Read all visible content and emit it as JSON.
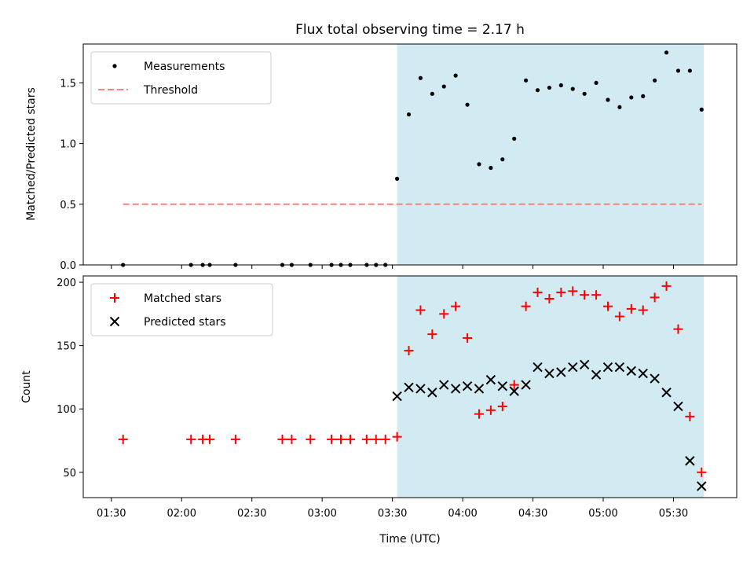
{
  "chart_data": {
    "title": "Flux total observing time = 2.17 h",
    "xlabel": "Time (UTC)",
    "x_ticks": [
      "01:30",
      "02:00",
      "02:30",
      "03:00",
      "03:30",
      "04:00",
      "04:30",
      "05:00",
      "05:30"
    ],
    "x_range": [
      "01:18",
      "05:57"
    ],
    "shaded_region": {
      "start": "03:32",
      "end": "05:43",
      "color": "#add8e6"
    },
    "panels": [
      {
        "type": "scatter",
        "ylabel": "Matched/Predicted stars",
        "ylim": [
          0,
          1.82
        ],
        "y_ticks": [
          "0.0",
          "0.5",
          "1.0",
          "1.5"
        ],
        "grid": false,
        "legend_position": "upper-left",
        "series": [
          {
            "name": "Measurements",
            "marker": "dot",
            "color": "#000000",
            "x": [
              "01:35",
              "02:04",
              "02:09",
              "02:12",
              "02:23",
              "02:43",
              "02:47",
              "02:55",
              "03:04",
              "03:08",
              "03:12",
              "03:19",
              "03:23",
              "03:27",
              "03:32",
              "03:37",
              "03:42",
              "03:47",
              "03:52",
              "03:57",
              "04:02",
              "04:07",
              "04:12",
              "04:17",
              "04:22",
              "04:27",
              "04:32",
              "04:37",
              "04:42",
              "04:47",
              "04:52",
              "04:57",
              "05:02",
              "05:07",
              "05:12",
              "05:17",
              "05:22",
              "05:27",
              "05:32",
              "05:37",
              "05:42"
            ],
            "y": [
              0,
              0,
              0,
              0,
              0,
              0,
              0,
              0,
              0,
              0,
              0,
              0,
              0,
              0,
              0.71,
              1.24,
              1.54,
              1.41,
              1.47,
              1.56,
              1.32,
              0.83,
              0.8,
              0.87,
              1.04,
              1.52,
              1.44,
              1.46,
              1.48,
              1.45,
              1.41,
              1.5,
              1.36,
              1.3,
              1.38,
              1.39,
              1.52,
              1.75,
              1.6,
              1.6,
              1.28
            ]
          },
          {
            "name": "Threshold",
            "marker": "dashed-line",
            "color": "#ff7f7f",
            "x": [
              "01:35",
              "05:42"
            ],
            "y": [
              0.5,
              0.5
            ]
          }
        ]
      },
      {
        "type": "scatter",
        "ylabel": "Count",
        "ylim": [
          30,
          205
        ],
        "y_ticks": [
          "50",
          "100",
          "150",
          "200"
        ],
        "grid": false,
        "legend_position": "upper-left",
        "series": [
          {
            "name": "Matched stars",
            "marker": "plus",
            "color": "#ff0000",
            "x": [
              "01:35",
              "02:04",
              "02:09",
              "02:12",
              "02:23",
              "02:43",
              "02:47",
              "02:55",
              "03:04",
              "03:08",
              "03:12",
              "03:19",
              "03:23",
              "03:27",
              "03:32",
              "03:37",
              "03:42",
              "03:47",
              "03:52",
              "03:57",
              "04:02",
              "04:07",
              "04:12",
              "04:17",
              "04:22",
              "04:27",
              "04:32",
              "04:37",
              "04:42",
              "04:47",
              "04:52",
              "04:57",
              "05:02",
              "05:07",
              "05:12",
              "05:17",
              "05:22",
              "05:27",
              "05:32",
              "05:37",
              "05:42"
            ],
            "y": [
              76,
              76,
              76,
              76,
              76,
              76,
              76,
              76,
              76,
              76,
              76,
              76,
              76,
              76,
              78,
              146,
              178,
              159,
              175,
              181,
              156,
              96,
              99,
              102,
              119,
              181,
              192,
              187,
              192,
              193,
              190,
              190,
              181,
              173,
              179,
              178,
              188,
              197,
              163,
              94,
              50
            ]
          },
          {
            "name": "Predicted stars",
            "marker": "x",
            "color": "#000000",
            "x": [
              "03:32",
              "03:37",
              "03:42",
              "03:47",
              "03:52",
              "03:57",
              "04:02",
              "04:07",
              "04:12",
              "04:17",
              "04:22",
              "04:27",
              "04:32",
              "04:37",
              "04:42",
              "04:47",
              "04:52",
              "04:57",
              "05:02",
              "05:07",
              "05:12",
              "05:17",
              "05:22",
              "05:27",
              "05:32",
              "05:37",
              "05:42"
            ],
            "y": [
              110,
              117,
              116,
              113,
              119,
              116,
              118,
              116,
              123,
              118,
              114,
              119,
              133,
              128,
              129,
              133,
              135,
              127,
              133,
              133,
              130,
              128,
              124,
              113,
              102,
              59,
              39
            ]
          }
        ]
      }
    ]
  }
}
